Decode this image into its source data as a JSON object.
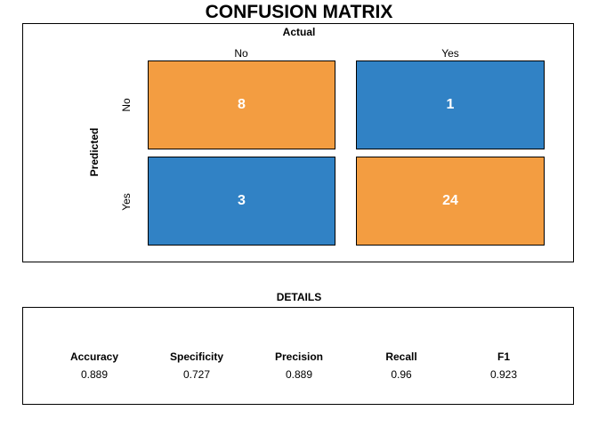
{
  "chart_data": {
    "type": "heatmap",
    "title": "CONFUSION MATRIX",
    "column_axis_label": "Actual",
    "row_axis_label": "Predicted",
    "columns": [
      "No",
      "Yes"
    ],
    "rows": [
      "No",
      "Yes"
    ],
    "values": [
      [
        8,
        1
      ],
      [
        3,
        24
      ]
    ],
    "colors": {
      "correct": "#F39D41",
      "incorrect": "#3182C5",
      "text": "#FFFFFF"
    }
  },
  "details": {
    "title": "DETAILS",
    "metrics": [
      {
        "name": "Accuracy",
        "value": "0.889"
      },
      {
        "name": "Specificity",
        "value": "0.727"
      },
      {
        "name": "Precision",
        "value": "0.889"
      },
      {
        "name": "Recall",
        "value": "0.96"
      },
      {
        "name": "F1",
        "value": "0.923"
      }
    ]
  }
}
